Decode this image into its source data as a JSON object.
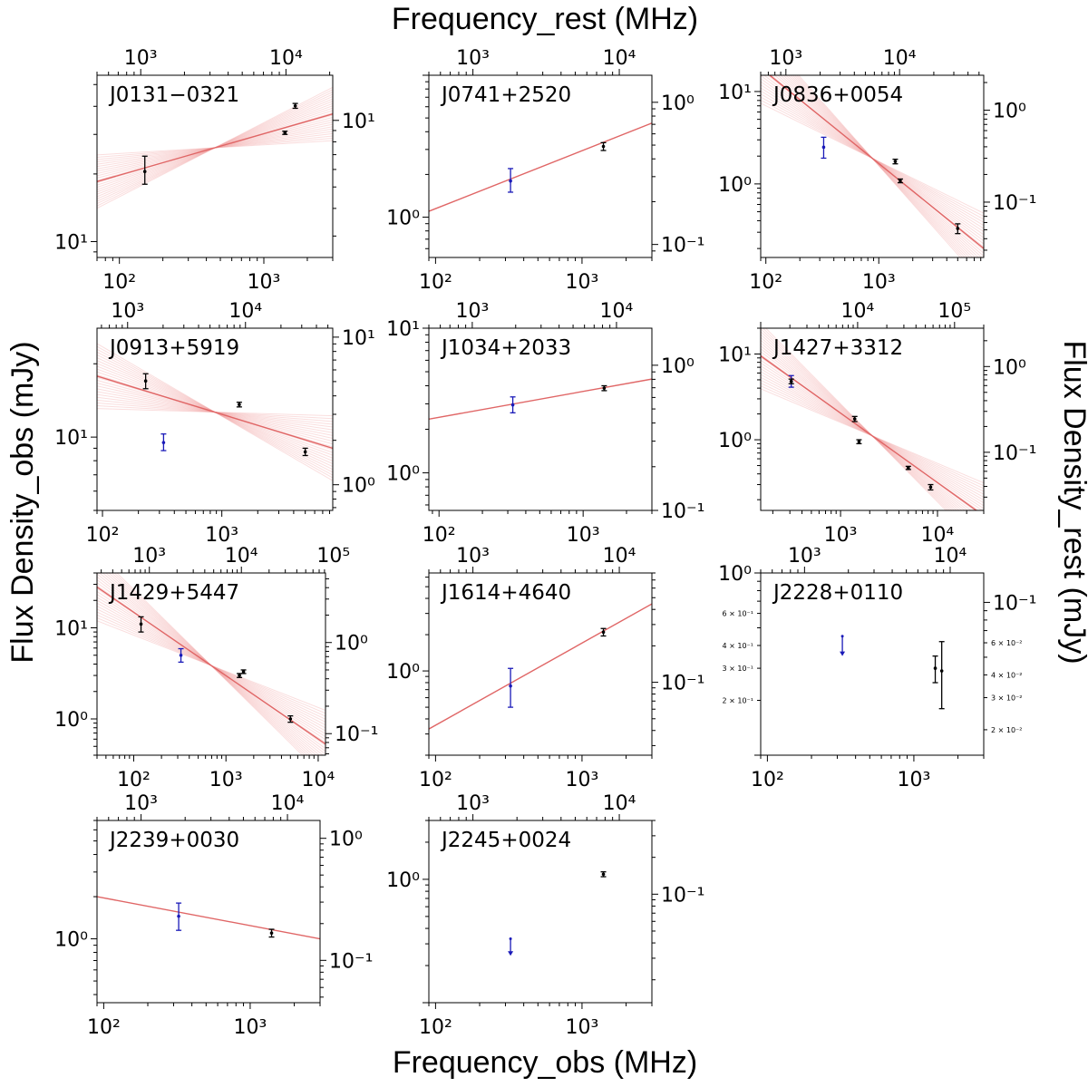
{
  "figure": {
    "top_title": "Frequency_rest (MHz)",
    "bottom_title": "Frequency_obs (MHz)",
    "left_title": "Flux Density_obs (mJy)",
    "right_title": "Flux Density_rest (mJy)"
  },
  "colors": {
    "fit_line": "#e06666",
    "fit_band": "#f2a0a0",
    "detection": "#000000",
    "special_point": "#1a1ab8"
  },
  "chart_data": [
    {
      "type": "scatter",
      "title": "J0131−0321",
      "xlabel": "Frequency_obs (MHz)",
      "ylabel": "Flux Density_obs (mJy)",
      "x_obs_range": [
        70,
        3000
      ],
      "y_obs_range": [
        8.5,
        55
      ],
      "x_rest_range": [
        500,
        21000
      ],
      "y_rest_range": [
        2.4,
        16
      ],
      "bottom_ticks": [
        {
          "v": 100,
          "text": "10²"
        },
        {
          "v": 1000,
          "text": "10³"
        }
      ],
      "top_ticks": [
        {
          "v": 1000,
          "text": "10³"
        },
        {
          "v": 10000,
          "text": "10⁴"
        }
      ],
      "left_ticks": [
        {
          "v": 10,
          "text": "10¹"
        }
      ],
      "right_ticks": [
        {
          "v": 10,
          "text": "10¹"
        }
      ],
      "fit": {
        "type": "power-law",
        "x": [
          70,
          3000
        ],
        "y": [
          18.5,
          37
        ],
        "band": true
      },
      "points": [
        {
          "x": 150,
          "y": 20.5,
          "yerr_lo": 2.5,
          "yerr_hi": 3.5,
          "color": "black"
        },
        {
          "x": 1400,
          "y": 30.5,
          "yerr_lo": 0.5,
          "yerr_hi": 0.5,
          "color": "black"
        },
        {
          "x": 1650,
          "y": 40.2,
          "yerr_lo": 1.0,
          "yerr_hi": 1.0,
          "color": "black"
        }
      ]
    },
    {
      "type": "scatter",
      "title": "J0741+2520",
      "xlabel": "Frequency_obs (MHz)",
      "ylabel": "Flux Density_obs (mJy)",
      "x_obs_range": [
        90,
        3000
      ],
      "y_obs_range": [
        0.52,
        10
      ],
      "x_rest_range": [
        500,
        16700
      ],
      "y_rest_range": [
        0.081,
        1.55
      ],
      "bottom_ticks": [
        {
          "v": 100,
          "text": "10²"
        },
        {
          "v": 1000,
          "text": "10³"
        }
      ],
      "top_ticks": [
        {
          "v": 1000,
          "text": "10³"
        },
        {
          "v": 10000,
          "text": "10⁴"
        }
      ],
      "left_ticks": [
        {
          "v": 1,
          "text": "10⁰"
        }
      ],
      "right_ticks": [
        {
          "v": 1,
          "text": "10⁰"
        },
        {
          "v": 0.1,
          "text": "10⁻¹"
        }
      ],
      "fit": {
        "type": "power-law",
        "x": [
          90,
          3000
        ],
        "y": [
          1.1,
          4.6
        ],
        "band": false
      },
      "points": [
        {
          "x": 325,
          "y": 1.8,
          "yerr_lo": 0.3,
          "yerr_hi": 0.4,
          "color": "blue"
        },
        {
          "x": 1400,
          "y": 3.15,
          "yerr_lo": 0.2,
          "yerr_hi": 0.2,
          "color": "black"
        }
      ]
    },
    {
      "type": "scatter",
      "title": "J0836+0054",
      "xlabel": "Frequency_obs (MHz)",
      "ylabel": "Flux Density_obs (mJy)",
      "x_obs_range": [
        90,
        8500
      ],
      "y_obs_range": [
        0.16,
        15
      ],
      "x_rest_range": [
        600,
        55000
      ],
      "y_rest_range": [
        0.025,
        2.4
      ],
      "bottom_ticks": [
        {
          "v": 100,
          "text": "10²"
        },
        {
          "v": 1000,
          "text": "10³"
        }
      ],
      "top_ticks": [
        {
          "v": 1000,
          "text": "10³"
        },
        {
          "v": 10000,
          "text": "10⁴"
        }
      ],
      "left_ticks": [
        {
          "v": 10,
          "text": "10¹"
        },
        {
          "v": 1,
          "text": "10⁰"
        }
      ],
      "right_ticks": [
        {
          "v": 1,
          "text": "10⁰"
        },
        {
          "v": 0.1,
          "text": "10⁻¹"
        }
      ],
      "fit": {
        "type": "power-law",
        "x": [
          90,
          8500
        ],
        "y": [
          18,
          0.2
        ],
        "band": true
      },
      "points": [
        {
          "x": 325,
          "y": 2.5,
          "yerr_lo": 0.6,
          "yerr_hi": 0.7,
          "color": "blue"
        },
        {
          "x": 1400,
          "y": 1.75,
          "yerr_lo": 0.1,
          "yerr_hi": 0.1,
          "color": "black"
        },
        {
          "x": 1550,
          "y": 1.08,
          "yerr_lo": 0.05,
          "yerr_hi": 0.05,
          "color": "black"
        },
        {
          "x": 5000,
          "y": 0.33,
          "yerr_lo": 0.04,
          "yerr_hi": 0.04,
          "color": "black"
        }
      ]
    },
    {
      "type": "scatter",
      "title": "J0913+5919",
      "xlabel": "Frequency_obs (MHz)",
      "ylabel": "Flux Density_obs (mJy)",
      "x_obs_range": [
        90,
        8500
      ],
      "y_obs_range": [
        5,
        28
      ],
      "x_rest_range": [
        550,
        55000
      ],
      "y_rest_range": [
        0.67,
        11.5
      ],
      "bottom_ticks": [
        {
          "v": 100,
          "text": "10²"
        },
        {
          "v": 1000,
          "text": "10³"
        }
      ],
      "top_ticks": [
        {
          "v": 1000,
          "text": "10³"
        },
        {
          "v": 10000,
          "text": "10⁴"
        }
      ],
      "left_ticks": [
        {
          "v": 10,
          "text": "10¹"
        }
      ],
      "right_ticks": [
        {
          "v": 10,
          "text": "10¹"
        },
        {
          "v": 1,
          "text": "10⁰"
        }
      ],
      "fit": {
        "type": "power-law",
        "x": [
          90,
          8500
        ],
        "y": [
          17.8,
          9.0
        ],
        "band": true
      },
      "points": [
        {
          "x": 230,
          "y": 17.0,
          "yerr_lo": 1.2,
          "yerr_hi": 1.2,
          "color": "black"
        },
        {
          "x": 325,
          "y": 9.5,
          "yerr_lo": 0.7,
          "yerr_hi": 0.8,
          "color": "blue"
        },
        {
          "x": 1400,
          "y": 13.6,
          "yerr_lo": 0.3,
          "yerr_hi": 0.3,
          "color": "black"
        },
        {
          "x": 5000,
          "y": 8.7,
          "yerr_lo": 0.3,
          "yerr_hi": 0.3,
          "color": "black"
        }
      ]
    },
    {
      "type": "scatter",
      "title": "J1034+2033",
      "xlabel": "Frequency_obs (MHz)",
      "ylabel": "Flux Density_obs (mJy)",
      "x_obs_range": [
        85,
        3000
      ],
      "y_obs_range": [
        0.55,
        10
      ],
      "x_rest_range": [
        500,
        17600
      ],
      "y_rest_range": [
        0.1,
        1.8
      ],
      "bottom_ticks": [
        {
          "v": 100,
          "text": "10²"
        },
        {
          "v": 1000,
          "text": "10³"
        }
      ],
      "top_ticks": [
        {
          "v": 1000,
          "text": "10³"
        },
        {
          "v": 10000,
          "text": "10⁴"
        }
      ],
      "left_ticks": [
        {
          "v": 10,
          "text": "10¹"
        },
        {
          "v": 1,
          "text": "10⁰"
        }
      ],
      "right_ticks": [
        {
          "v": 1,
          "text": "10⁰"
        },
        {
          "v": 0.1,
          "text": "10⁻¹"
        }
      ],
      "fit": {
        "type": "power-law",
        "x": [
          85,
          3000
        ],
        "y": [
          2.35,
          4.45
        ],
        "band": false
      },
      "points": [
        {
          "x": 325,
          "y": 2.95,
          "yerr_lo": 0.35,
          "yerr_hi": 0.4,
          "color": "blue"
        },
        {
          "x": 1400,
          "y": 3.85,
          "yerr_lo": 0.15,
          "yerr_hi": 0.15,
          "color": "black"
        }
      ]
    },
    {
      "type": "scatter",
      "title": "J1427+3312",
      "xlabel": "Frequency_obs (MHz)",
      "ylabel": "Flux Density_obs (mJy)",
      "x_obs_range": [
        150,
        30000
      ],
      "y_obs_range": [
        0.15,
        20
      ],
      "x_rest_range": [
        1000,
        200000
      ],
      "y_rest_range": [
        0.021,
        2.8
      ],
      "bottom_ticks": [
        {
          "v": 1000,
          "text": "10³"
        },
        {
          "v": 10000,
          "text": "10⁴"
        }
      ],
      "top_ticks": [
        {
          "v": 10000,
          "text": "10⁴"
        },
        {
          "v": 100000,
          "text": "10⁵"
        }
      ],
      "left_ticks": [
        {
          "v": 10,
          "text": "10¹"
        },
        {
          "v": 1,
          "text": "10⁰"
        }
      ],
      "right_ticks": [
        {
          "v": 1,
          "text": "10⁰"
        },
        {
          "v": 0.1,
          "text": "10⁻¹"
        }
      ],
      "fit": {
        "type": "power-law",
        "x": [
          150,
          30000
        ],
        "y": [
          9.5,
          0.13
        ],
        "band": true
      },
      "points": [
        {
          "x": 310,
          "y": 4.8,
          "yerr_lo": 0.7,
          "yerr_hi": 0.8,
          "color": "blue"
        },
        {
          "x": 310,
          "y": 4.8,
          "yerr_lo": 0.3,
          "yerr_hi": 0.3,
          "color": "black"
        },
        {
          "x": 1400,
          "y": 1.75,
          "yerr_lo": 0.12,
          "yerr_hi": 0.12,
          "color": "black"
        },
        {
          "x": 1550,
          "y": 0.95,
          "yerr_lo": 0.05,
          "yerr_hi": 0.05,
          "color": "black"
        },
        {
          "x": 5000,
          "y": 0.47,
          "yerr_lo": 0.02,
          "yerr_hi": 0.02,
          "color": "black"
        },
        {
          "x": 8500,
          "y": 0.28,
          "yerr_lo": 0.02,
          "yerr_hi": 0.02,
          "color": "black"
        }
      ]
    },
    {
      "type": "scatter",
      "title": "J1429+5447",
      "xlabel": "Frequency_obs (MHz)",
      "ylabel": "Flux Density_obs (mJy)",
      "x_obs_range": [
        40,
        12000
      ],
      "y_obs_range": [
        0.4,
        40
      ],
      "x_rest_range": [
        270,
        82000
      ],
      "y_rest_range": [
        0.058,
        5.8
      ],
      "bottom_ticks": [
        {
          "v": 100,
          "text": "10²"
        },
        {
          "v": 1000,
          "text": "10³"
        },
        {
          "v": 10000,
          "text": "10⁴"
        }
      ],
      "top_ticks": [
        {
          "v": 1000,
          "text": "10³"
        },
        {
          "v": 10000,
          "text": "10⁴"
        },
        {
          "v": 100000,
          "text": "10⁵"
        }
      ],
      "left_ticks": [
        {
          "v": 10,
          "text": "10¹"
        },
        {
          "v": 1,
          "text": "10⁰"
        }
      ],
      "right_ticks": [
        {
          "v": 1,
          "text": "10⁰"
        },
        {
          "v": 0.1,
          "text": "10⁻¹"
        }
      ],
      "fit": {
        "type": "power-law",
        "x": [
          40,
          12000
        ],
        "y": [
          28,
          0.53
        ],
        "band": true
      },
      "points": [
        {
          "x": 120,
          "y": 11.0,
          "yerr_lo": 2.0,
          "yerr_hi": 2.2,
          "color": "black"
        },
        {
          "x": 325,
          "y": 5.0,
          "yerr_lo": 0.8,
          "yerr_hi": 0.9,
          "color": "blue"
        },
        {
          "x": 1400,
          "y": 3.0,
          "yerr_lo": 0.15,
          "yerr_hi": 0.15,
          "color": "black"
        },
        {
          "x": 1550,
          "y": 3.3,
          "yerr_lo": 0.15,
          "yerr_hi": 0.15,
          "color": "black"
        },
        {
          "x": 5000,
          "y": 1.0,
          "yerr_lo": 0.08,
          "yerr_hi": 0.08,
          "color": "black"
        }
      ]
    },
    {
      "type": "scatter",
      "title": "J1614+4640",
      "xlabel": "Frequency_obs (MHz)",
      "ylabel": "Flux Density_obs (mJy)",
      "x_obs_range": [
        90,
        3000
      ],
      "y_obs_range": [
        0.2,
        6.5
      ],
      "x_rest_range": [
        500,
        16700
      ],
      "y_rest_range": [
        0.025,
        0.8
      ],
      "bottom_ticks": [
        {
          "v": 100,
          "text": "10²"
        },
        {
          "v": 1000,
          "text": "10³"
        }
      ],
      "top_ticks": [
        {
          "v": 1000,
          "text": "10³"
        },
        {
          "v": 10000,
          "text": "10⁴"
        }
      ],
      "left_ticks": [
        {
          "v": 1,
          "text": "10⁰"
        }
      ],
      "right_ticks": [
        {
          "v": 0.1,
          "text": "10⁻¹"
        }
      ],
      "fit": {
        "type": "power-law",
        "x": [
          90,
          3000
        ],
        "y": [
          0.33,
          3.6
        ],
        "band": false
      },
      "points": [
        {
          "x": 325,
          "y": 0.75,
          "yerr_lo": 0.25,
          "yerr_hi": 0.3,
          "color": "blue"
        },
        {
          "x": 1400,
          "y": 2.1,
          "yerr_lo": 0.15,
          "yerr_hi": 0.15,
          "color": "black"
        }
      ]
    },
    {
      "type": "scatter",
      "title": "J2228+0110",
      "xlabel": "Frequency_obs (MHz)",
      "ylabel": "Flux Density_obs (mJy)",
      "x_obs_range": [
        90,
        3000
      ],
      "y_obs_range": [
        0.1,
        1.0
      ],
      "x_rest_range": [
        500,
        17000
      ],
      "y_rest_range": [
        0.0145,
        0.145
      ],
      "bottom_ticks": [
        {
          "v": 100,
          "text": "10²"
        },
        {
          "v": 1000,
          "text": "10³"
        }
      ],
      "top_ticks": [
        {
          "v": 1000,
          "text": "10³"
        },
        {
          "v": 10000,
          "text": "10⁴"
        }
      ],
      "left_ticks": [
        {
          "v": 1,
          "text": "10⁰"
        }
      ],
      "right_ticks": [
        {
          "v": 0.1,
          "text": "10⁻¹"
        }
      ],
      "left_small_ticks": [
        {
          "v": 0.6,
          "text": "6 × 10⁻¹"
        },
        {
          "v": 0.4,
          "text": "4 × 10⁻¹"
        },
        {
          "v": 0.3,
          "text": "3 × 10⁻¹"
        },
        {
          "v": 0.2,
          "text": "2 × 10⁻¹"
        }
      ],
      "right_small_ticks": [
        {
          "v": 0.06,
          "text": "6 × 10⁻²"
        },
        {
          "v": 0.04,
          "text": "4 × 10⁻²"
        },
        {
          "v": 0.03,
          "text": "3 × 10⁻²"
        },
        {
          "v": 0.02,
          "text": "2 × 10⁻²"
        }
      ],
      "fit": null,
      "upper_limits": [
        {
          "x": 325,
          "y": 0.45,
          "to": 0.35,
          "color": "blue"
        }
      ],
      "points": [
        {
          "x": 1400,
          "y": 0.3,
          "yerr_lo": 0.05,
          "yerr_hi": 0.05,
          "color": "black"
        },
        {
          "x": 1550,
          "y": 0.29,
          "yerr_lo": 0.11,
          "yerr_hi": 0.13,
          "color": "black"
        }
      ]
    },
    {
      "type": "scatter",
      "title": "J2239+0030",
      "xlabel": "Frequency_obs (MHz)",
      "ylabel": "Flux Density_obs (mJy)",
      "x_obs_range": [
        90,
        3000
      ],
      "y_obs_range": [
        0.35,
        7
      ],
      "x_rest_range": [
        500,
        16700
      ],
      "y_rest_range": [
        0.045,
        1.4
      ],
      "bottom_ticks": [
        {
          "v": 100,
          "text": "10²"
        },
        {
          "v": 1000,
          "text": "10³"
        }
      ],
      "top_ticks": [
        {
          "v": 1000,
          "text": "10³"
        },
        {
          "v": 10000,
          "text": "10⁴"
        }
      ],
      "left_ticks": [
        {
          "v": 1,
          "text": "10⁰"
        }
      ],
      "right_ticks": [
        {
          "v": 1,
          "text": "10⁰"
        },
        {
          "v": 0.1,
          "text": "10⁻¹"
        }
      ],
      "fit": {
        "type": "power-law",
        "x": [
          90,
          3000
        ],
        "y": [
          2.0,
          1.0
        ],
        "band": false
      },
      "points": [
        {
          "x": 325,
          "y": 1.45,
          "yerr_lo": 0.3,
          "yerr_hi": 0.35,
          "color": "blue"
        },
        {
          "x": 1400,
          "y": 1.1,
          "yerr_lo": 0.07,
          "yerr_hi": 0.07,
          "color": "black"
        }
      ]
    },
    {
      "type": "scatter",
      "title": "J2245+0024",
      "xlabel": "Frequency_obs (MHz)",
      "ylabel": "Flux Density_obs (mJy)",
      "x_obs_range": [
        90,
        3000
      ],
      "y_obs_range": [
        0.1,
        3.0
      ],
      "x_rest_range": [
        500,
        16700
      ],
      "y_rest_range": [
        0.013,
        0.4
      ],
      "bottom_ticks": [
        {
          "v": 100,
          "text": "10²"
        },
        {
          "v": 1000,
          "text": "10³"
        }
      ],
      "top_ticks": [
        {
          "v": 1000,
          "text": "10³"
        },
        {
          "v": 10000,
          "text": "10⁴"
        }
      ],
      "left_ticks": [
        {
          "v": 1,
          "text": "10⁰"
        }
      ],
      "right_ticks": [
        {
          "v": 0.1,
          "text": "10⁻¹"
        }
      ],
      "fit": null,
      "upper_limits": [
        {
          "x": 325,
          "y": 0.33,
          "to": 0.24,
          "color": "blue"
        }
      ],
      "points": [
        {
          "x": 1400,
          "y": 1.1,
          "yerr_lo": 0.05,
          "yerr_hi": 0.05,
          "color": "black"
        }
      ]
    }
  ]
}
